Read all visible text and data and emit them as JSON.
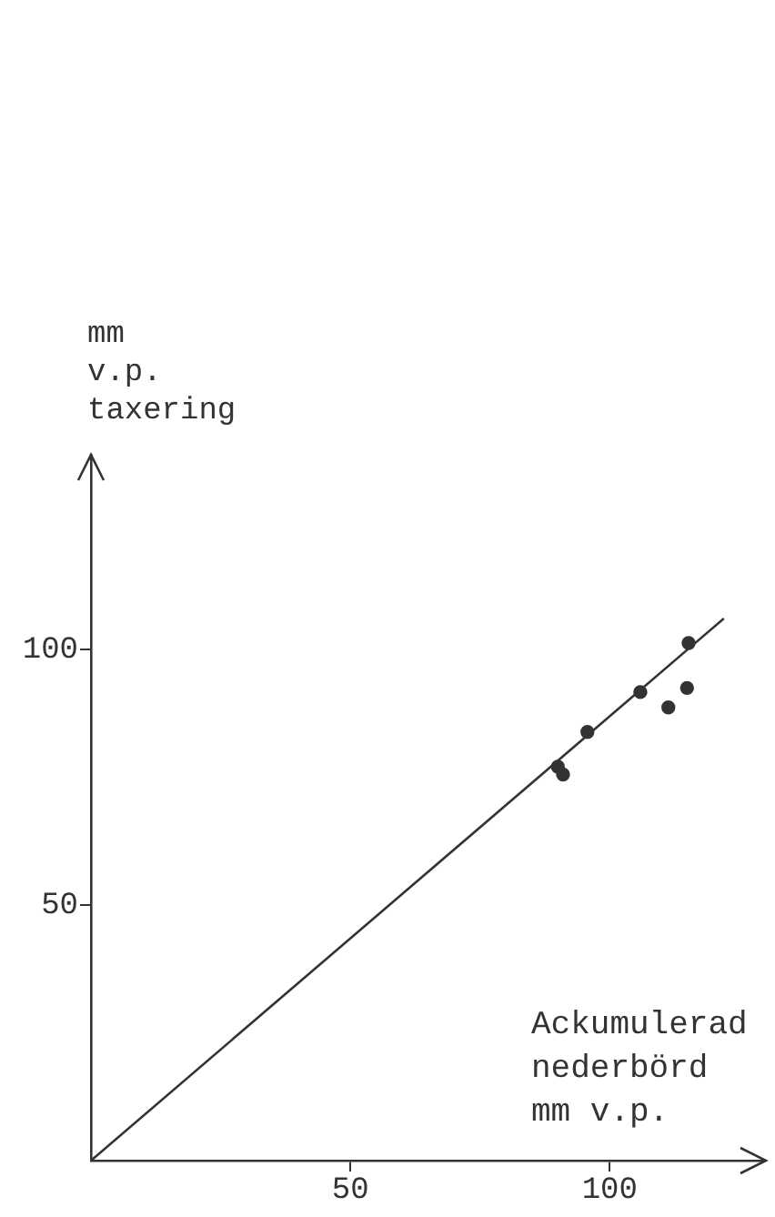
{
  "chart_data": {
    "type": "scatter",
    "xlabel": "Ackumulerad\nnederbörd\nmm v.p.",
    "ylabel": "mm\nv.p.\ntaxering",
    "xlim": [
      0,
      130
    ],
    "ylim": [
      0,
      138
    ],
    "xticks": [
      50,
      100
    ],
    "yticks": [
      50,
      100
    ],
    "grid": false,
    "legend": false,
    "marker": "circle",
    "series": [
      {
        "color": "#333333",
        "x": [
          90,
          91,
          95.7,
          105.9,
          111.3,
          114.9,
          115.2
        ],
        "values": [
          77,
          75.5,
          83.8,
          91.6,
          88.6,
          92.4,
          101.2
        ]
      },
      {
        "type": "line",
        "color": "#333333",
        "marker": "none",
        "line_style": "solid",
        "x": [
          0,
          122
        ],
        "values": [
          0,
          106
        ]
      }
    ]
  }
}
